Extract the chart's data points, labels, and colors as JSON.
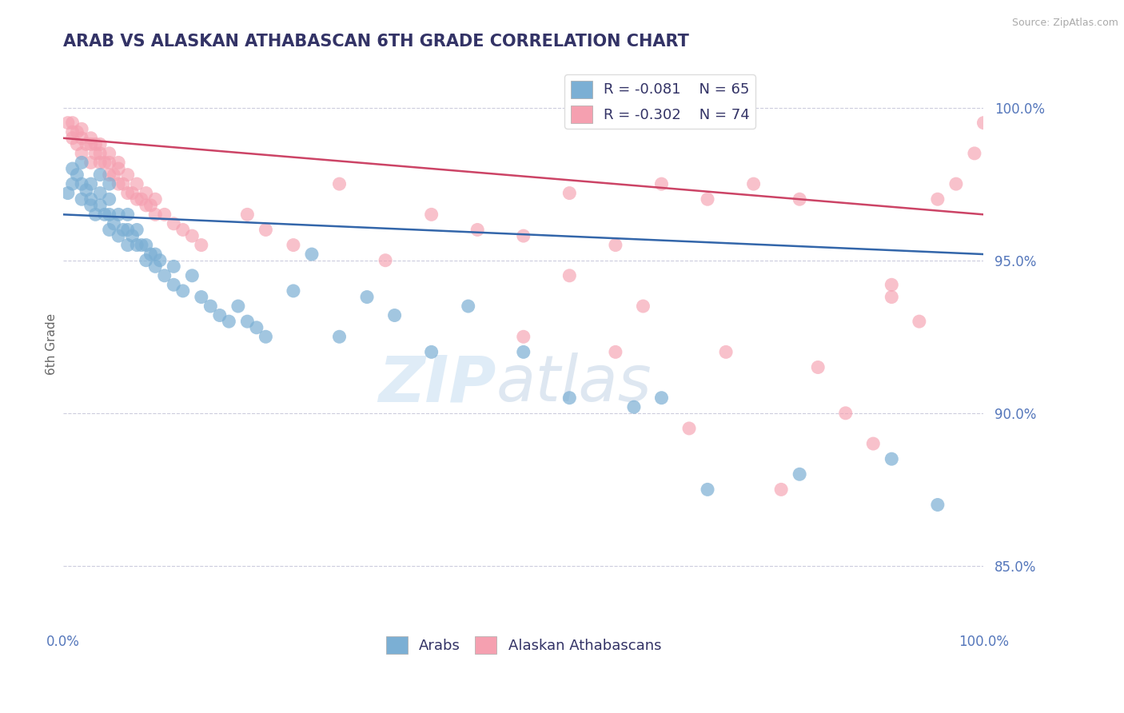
{
  "title": "ARAB VS ALASKAN ATHABASCAN 6TH GRADE CORRELATION CHART",
  "source": "Source: ZipAtlas.com",
  "ylabel": "6th Grade",
  "xlim": [
    0.0,
    100.0
  ],
  "ylim": [
    83.0,
    101.5
  ],
  "yticks": [
    85.0,
    90.0,
    95.0,
    100.0
  ],
  "ytick_labels": [
    "85.0%",
    "90.0%",
    "95.0%",
    "100.0%"
  ],
  "legend_r1": "R = -0.081",
  "legend_n1": "N = 65",
  "legend_r2": "R = -0.302",
  "legend_n2": "N = 74",
  "blue_color": "#7BAFD4",
  "pink_color": "#F5A0B0",
  "trend_blue": "#3366AA",
  "trend_pink": "#CC4466",
  "grid_color": "#CCCCDD",
  "title_color": "#333366",
  "axis_color": "#5577BB",
  "watermark_color": "#D8E8F5",
  "blue_scatter_x": [
    0.5,
    1,
    1,
    1.5,
    2,
    2,
    2,
    2.5,
    3,
    3,
    3,
    3.5,
    4,
    4,
    4,
    4.5,
    5,
    5,
    5,
    5,
    5.5,
    6,
    6,
    6.5,
    7,
    7,
    7,
    7.5,
    8,
    8,
    8.5,
    9,
    9,
    9.5,
    10,
    10,
    10.5,
    11,
    12,
    12,
    13,
    14,
    15,
    16,
    17,
    18,
    19,
    20,
    21,
    22,
    25,
    27,
    30,
    33,
    36,
    40,
    44,
    50,
    55,
    62,
    65,
    70,
    80,
    90,
    95
  ],
  "blue_scatter_y": [
    97.2,
    97.5,
    98.0,
    97.8,
    97.0,
    97.5,
    98.2,
    97.3,
    96.8,
    97.0,
    97.5,
    96.5,
    96.8,
    97.2,
    97.8,
    96.5,
    96.0,
    96.5,
    97.0,
    97.5,
    96.2,
    95.8,
    96.5,
    96.0,
    95.5,
    96.0,
    96.5,
    95.8,
    95.5,
    96.0,
    95.5,
    95.0,
    95.5,
    95.2,
    94.8,
    95.2,
    95.0,
    94.5,
    94.2,
    94.8,
    94.0,
    94.5,
    93.8,
    93.5,
    93.2,
    93.0,
    93.5,
    93.0,
    92.8,
    92.5,
    94.0,
    95.2,
    92.5,
    93.8,
    93.2,
    92.0,
    93.5,
    92.0,
    90.5,
    90.2,
    90.5,
    87.5,
    88.0,
    88.5,
    87.0
  ],
  "pink_scatter_x": [
    0.5,
    1,
    1,
    1,
    1.5,
    1.5,
    2,
    2,
    2,
    2.5,
    3,
    3,
    3,
    3.5,
    3.5,
    4,
    4,
    4,
    4.5,
    5,
    5,
    5,
    5.5,
    6,
    6,
    6,
    6.5,
    7,
    7,
    7.5,
    8,
    8,
    8.5,
    9,
    9,
    9.5,
    10,
    10,
    11,
    12,
    13,
    14,
    15,
    20,
    22,
    25,
    30,
    35,
    40,
    45,
    50,
    55,
    60,
    65,
    70,
    75,
    80,
    85,
    90,
    95,
    100,
    50,
    55,
    60,
    63,
    68,
    72,
    78,
    82,
    88,
    90,
    93,
    97,
    99
  ],
  "pink_scatter_y": [
    99.5,
    99.0,
    99.2,
    99.5,
    98.8,
    99.2,
    98.5,
    99.0,
    99.3,
    98.8,
    98.2,
    98.8,
    99.0,
    98.5,
    98.8,
    98.2,
    98.5,
    98.8,
    98.2,
    97.8,
    98.2,
    98.5,
    97.8,
    97.5,
    98.0,
    98.2,
    97.5,
    97.2,
    97.8,
    97.2,
    97.0,
    97.5,
    97.0,
    96.8,
    97.2,
    96.8,
    96.5,
    97.0,
    96.5,
    96.2,
    96.0,
    95.8,
    95.5,
    96.5,
    96.0,
    95.5,
    97.5,
    95.0,
    96.5,
    96.0,
    95.8,
    97.2,
    95.5,
    97.5,
    97.0,
    97.5,
    97.0,
    90.0,
    94.2,
    97.0,
    99.5,
    92.5,
    94.5,
    92.0,
    93.5,
    89.5,
    92.0,
    87.5,
    91.5,
    89.0,
    93.8,
    93.0,
    97.5,
    98.5
  ]
}
